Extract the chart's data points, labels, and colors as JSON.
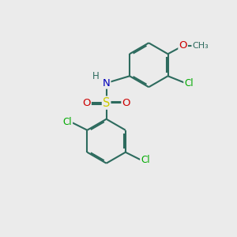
{
  "bg_color": "#ebebeb",
  "bond_color": "#2d6b5e",
  "bond_width": 1.5,
  "dbo": 0.055,
  "atom_colors": {
    "C": "#2d6b5e",
    "H": "#2d6b5e",
    "N": "#0000bb",
    "O": "#cc0000",
    "S": "#cccc00",
    "Cl": "#00aa00"
  },
  "font_size": 8.5,
  "fig_size": [
    3.0,
    3.0
  ],
  "dpi": 100,
  "xlim": [
    0,
    10
  ],
  "ylim": [
    0,
    10
  ]
}
